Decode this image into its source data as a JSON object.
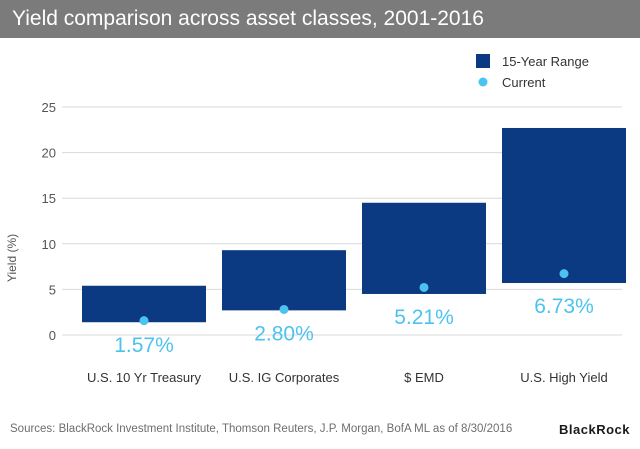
{
  "header": {
    "title": "Yield comparison across asset classes, 2001-2016"
  },
  "chart_data": {
    "type": "range-bar",
    "ylabel": "Yield (%)",
    "ylim": [
      0,
      25
    ],
    "yticks": [
      "0",
      "5",
      "10",
      "15",
      "20",
      "25"
    ],
    "gridlines": true,
    "legend_position": "top-right",
    "legend": {
      "range": "15-Year Range",
      "current": "Current"
    },
    "colors": {
      "range": "#0b3a82",
      "current": "#4cc3ee",
      "grid": "#d9d9d9",
      "axis_text": "#555555"
    },
    "categories": [
      "U.S. 10 Yr Treasury",
      "U.S. IG Corporates",
      "$ EMD",
      "U.S. High Yield"
    ],
    "range_low": [
      1.4,
      2.7,
      4.5,
      5.7
    ],
    "range_high": [
      5.4,
      9.3,
      14.5,
      22.7
    ],
    "current": [
      1.57,
      2.8,
      5.21,
      6.73
    ],
    "current_labels": [
      "1.57%",
      "2.80%",
      "5.21%",
      "6.73%"
    ]
  },
  "footer": {
    "source": "Sources: BlackRock Investment Institute, Thomson Reuters, J.P. Morgan, BofA ML as of 8/30/2016",
    "logo": "BlackRock"
  }
}
